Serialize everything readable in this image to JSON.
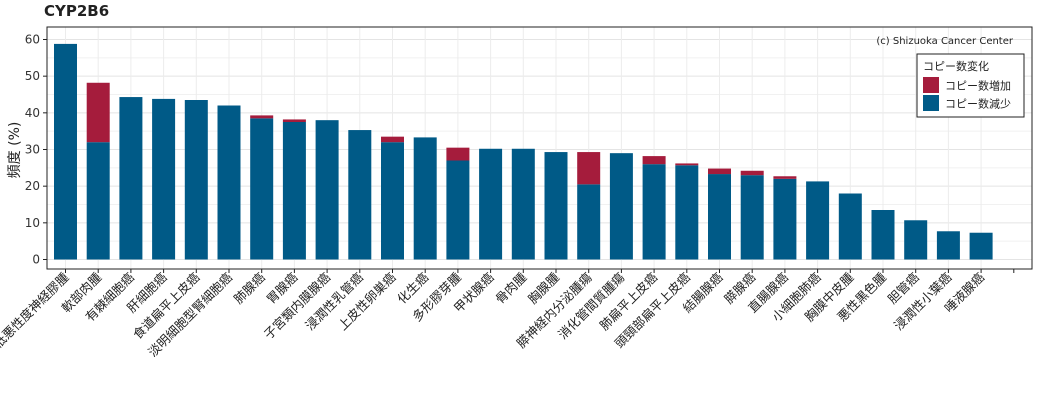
{
  "chart_data": {
    "type": "bar",
    "stacked": true,
    "title": "CYP2B6",
    "xlabel": "",
    "ylabel": "頻度 (%)",
    "ylim": [
      0,
      62
    ],
    "yticks": [
      0,
      10,
      20,
      30,
      40,
      50,
      60
    ],
    "grid": true,
    "legend_position": "top-right",
    "legend_title": "コピー数変化",
    "copyright": "(c) Shizuoka Cancer Center",
    "colors": {
      "gain": "#A51C3C",
      "loss": "#005A87"
    },
    "categories": [
      "低悪性度神経膠腫",
      "軟部肉腫",
      "有棘細胞癌",
      "肝細胞癌",
      "食道扁平上皮癌",
      "淡明細胞型腎細胞癌",
      "肺腺癌",
      "胃腺癌",
      "子宮類内膜腺癌",
      "浸潤性乳管癌",
      "上皮性卵巣癌",
      "化生癌",
      "多形膠芽腫",
      "甲状腺癌",
      "骨肉腫",
      "胸腺腫",
      "膵神経内分泌腫瘍",
      "消化管間質腫瘍",
      "肺扁平上皮癌",
      "頭頸部扁平上皮癌",
      "結腸腺癌",
      "膵腺癌",
      "直腸腺癌",
      "小細胞肺癌",
      "胸膜中皮腫",
      "悪性黒色腫",
      "胆管癌",
      "浸潤性小葉癌",
      "唾液腺癌"
    ],
    "series": [
      {
        "name": "コピー数減少",
        "values": [
          58.8,
          32.0,
          44.3,
          43.8,
          43.5,
          42.0,
          38.5,
          37.5,
          38.0,
          35.3,
          32.0,
          33.3,
          27.0,
          30.2,
          30.2,
          29.3,
          20.5,
          29.0,
          26.0,
          25.7,
          23.3,
          23.0,
          22.0,
          21.3,
          18.0,
          13.5,
          10.7,
          7.7,
          7.3
        ]
      },
      {
        "name": "コピー数増加",
        "values": [
          0,
          16.2,
          0,
          0,
          0,
          0,
          0.8,
          0.7,
          0,
          0,
          1.5,
          0,
          3.5,
          0,
          0,
          0,
          8.8,
          0,
          2.2,
          0.5,
          1.5,
          1.2,
          0.7,
          0,
          0,
          0,
          0,
          0,
          0
        ]
      }
    ]
  }
}
